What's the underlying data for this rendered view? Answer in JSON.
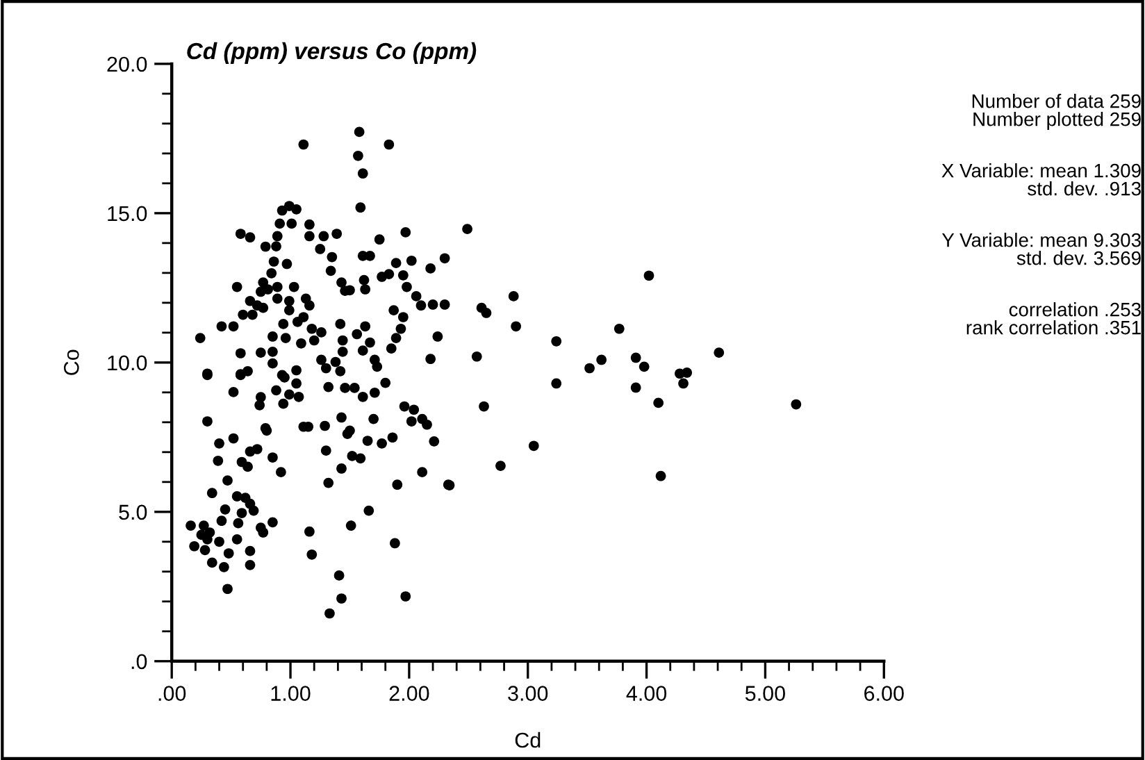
{
  "chart_data": {
    "type": "scatter",
    "title": "Cd (ppm) versus Co (ppm)",
    "xlabel": "Cd",
    "ylabel": "Co",
    "annotations": [
      "Number of data 259",
      "Number plotted 259",
      "X Variable: mean 1.309",
      "std. dev. .913",
      "Y Variable: mean 9.303",
      "std. dev. 3.569",
      "correlation .253",
      "rank correlation .351"
    ],
    "marker": "circle",
    "grid": false,
    "legend": false,
    "xlim": [
      0,
      6
    ],
    "ylim": [
      0,
      20
    ],
    "xticks": [
      {
        "value": 0,
        "label": ".00"
      },
      {
        "value": 0.2,
        "label": null
      },
      {
        "value": 0.4,
        "label": null
      },
      {
        "value": 0.6,
        "label": null
      },
      {
        "value": 0.8,
        "label": null
      },
      {
        "value": 1,
        "label": "1.00"
      },
      {
        "value": 1.2,
        "label": null
      },
      {
        "value": 1.4,
        "label": null
      },
      {
        "value": 1.6,
        "label": null
      },
      {
        "value": 1.8,
        "label": null
      },
      {
        "value": 2,
        "label": "2.00"
      },
      {
        "value": 2.2,
        "label": null
      },
      {
        "value": 2.4,
        "label": null
      },
      {
        "value": 2.6,
        "label": null
      },
      {
        "value": 2.8,
        "label": null
      },
      {
        "value": 3,
        "label": "3.00"
      },
      {
        "value": 3.2,
        "label": null
      },
      {
        "value": 3.4,
        "label": null
      },
      {
        "value": 3.6,
        "label": null
      },
      {
        "value": 3.8,
        "label": null
      },
      {
        "value": 4,
        "label": "4.00"
      },
      {
        "value": 4.2,
        "label": null
      },
      {
        "value": 4.4,
        "label": null
      },
      {
        "value": 4.6,
        "label": null
      },
      {
        "value": 4.8,
        "label": null
      },
      {
        "value": 5,
        "label": "5.00"
      },
      {
        "value": 5.2,
        "label": null
      },
      {
        "value": 5.4,
        "label": null
      },
      {
        "value": 5.6,
        "label": null
      },
      {
        "value": 5.8,
        "label": null
      },
      {
        "value": 6,
        "label": "6.00"
      }
    ],
    "yticks": [
      {
        "value": 0,
        "label": ".0"
      },
      {
        "value": 1,
        "label": null
      },
      {
        "value": 2,
        "label": null
      },
      {
        "value": 3,
        "label": null
      },
      {
        "value": 4,
        "label": null
      },
      {
        "value": 5,
        "label": "5.0"
      },
      {
        "value": 6,
        "label": null
      },
      {
        "value": 7,
        "label": null
      },
      {
        "value": 8,
        "label": null
      },
      {
        "value": 9,
        "label": null
      },
      {
        "value": 10,
        "label": "10.0"
      },
      {
        "value": 11,
        "label": null
      },
      {
        "value": 12,
        "label": null
      },
      {
        "value": 13,
        "label": null
      },
      {
        "value": 14,
        "label": null
      },
      {
        "value": 15,
        "label": "15.0"
      },
      {
        "value": 16,
        "label": null
      },
      {
        "value": 17,
        "label": null
      },
      {
        "value": 18,
        "label": null
      },
      {
        "value": 19,
        "label": null
      },
      {
        "value": 20,
        "label": "20.0"
      }
    ],
    "series": [
      {
        "color": "#000000",
        "x": [
          1.58,
          1.57,
          1.61,
          1.83,
          1.11,
          1.59,
          0.99,
          0.93,
          1.05,
          0.91,
          1.01,
          1.16,
          1.16,
          1.28,
          1.39,
          0.58,
          0.66,
          0.89,
          0.79,
          0.88,
          1.25,
          1.35,
          1.75,
          1.97,
          1.61,
          1.67,
          1.89,
          2.02,
          2.3,
          2.18,
          0.86,
          0.97,
          0.84,
          1.34,
          1.77,
          1.83,
          1.95,
          1.43,
          1.46,
          1.5,
          1.62,
          1.63,
          1.98,
          2.06,
          2.1,
          2.2,
          2.3,
          0.55,
          0.77,
          0.75,
          0.81,
          0.89,
          1.03,
          0.66,
          0.72,
          0.77,
          0.89,
          0.99,
          1.13,
          1.16,
          0.6,
          0.68,
          0.99,
          1.06,
          1.11,
          1.18,
          1.26,
          1.42,
          1.63,
          1.56,
          1.87,
          1.95,
          1.93,
          1.89,
          0.42,
          0.52,
          0.94,
          0.85,
          0.96,
          1.09,
          1.2,
          1.44,
          1.67,
          1.61,
          1.85,
          2.24,
          0.24,
          0.58,
          0.75,
          0.85,
          1.44,
          1.26,
          1.38,
          2.18,
          0.3,
          0.58,
          0.64,
          0.85,
          0.93,
          1.05,
          1.3,
          1.42,
          1.71,
          1.73,
          0.3,
          0.58,
          0.95,
          1.05,
          1.32,
          1.46,
          1.54,
          1.8,
          0.52,
          0.75,
          0.74,
          0.88,
          0.94,
          0.99,
          1.07,
          1.61,
          1.71,
          0.3,
          0.79,
          0.8,
          1.11,
          1.15,
          1.29,
          1.43,
          1.5,
          1.48,
          1.7,
          1.96,
          2.04,
          2.02,
          2.11,
          2.15,
          0.4,
          0.52,
          0.66,
          0.72,
          0.85,
          0.92,
          1.3,
          1.43,
          1.52,
          1.59,
          1.65,
          1.77,
          1.86,
          2.21,
          0.39,
          0.59,
          0.64,
          0.47,
          0.34,
          1.32,
          1.9,
          2.11,
          2.33,
          0.55,
          0.62,
          0.45,
          0.66,
          0.59,
          0.69,
          0.16,
          0.27,
          0.42,
          0.56,
          0.32,
          0.25,
          0.19,
          0.3,
          0.4,
          0.55,
          0.48,
          0.66,
          0.66,
          0.75,
          0.77,
          0.85,
          1.16,
          1.18,
          1.66,
          1.51,
          1.88,
          0.34,
          0.44,
          0.47,
          1.41,
          1.43,
          1.33,
          1.97,
          0.28,
          2.49,
          4.02,
          2.61,
          2.65,
          2.88,
          2.9,
          3.77,
          3.24,
          2.57,
          3.52,
          3.62,
          3.91,
          3.98,
          4.28,
          4.34,
          4.31,
          3.91,
          4.1,
          4.61,
          5.26,
          3.24,
          2.63,
          3.05,
          2.77,
          2.34,
          4.12
        ],
        "values": [
          17.72,
          16.92,
          16.33,
          17.3,
          17.3,
          15.19,
          15.24,
          15.09,
          15.13,
          14.65,
          14.65,
          14.62,
          14.23,
          14.23,
          14.31,
          14.31,
          14.19,
          14.23,
          13.88,
          13.89,
          13.8,
          13.53,
          14.12,
          14.36,
          13.57,
          13.57,
          13.33,
          13.41,
          13.49,
          13.15,
          13.38,
          13.3,
          12.99,
          13.07,
          12.87,
          12.96,
          12.92,
          12.68,
          12.4,
          12.42,
          12.76,
          12.45,
          12.53,
          12.22,
          11.91,
          11.94,
          11.94,
          12.53,
          12.68,
          12.37,
          12.45,
          12.53,
          12.53,
          12.06,
          11.91,
          11.83,
          12.14,
          12.06,
          12.14,
          11.91,
          11.6,
          11.6,
          11.75,
          11.36,
          11.52,
          11.13,
          11.01,
          11.29,
          11.21,
          10.95,
          11.75,
          11.52,
          11.13,
          10.82,
          11.21,
          11.21,
          11.29,
          10.87,
          10.82,
          10.64,
          10.74,
          10.74,
          10.67,
          10.4,
          10.47,
          10.87,
          10.82,
          10.31,
          10.33,
          10.36,
          10.36,
          10.09,
          10.02,
          10.12,
          9.63,
          9.61,
          9.71,
          9.97,
          9.58,
          9.74,
          9.81,
          9.71,
          10.09,
          9.86,
          9.58,
          9.58,
          9.5,
          9.3,
          9.18,
          9.15,
          9.15,
          9.32,
          9.01,
          8.84,
          8.57,
          9.07,
          8.62,
          8.93,
          8.85,
          8.85,
          8.99,
          8.03,
          7.8,
          7.72,
          7.85,
          7.85,
          7.88,
          8.16,
          7.72,
          7.61,
          8.11,
          8.53,
          8.42,
          8.03,
          8.11,
          7.92,
          7.29,
          7.46,
          7.02,
          7.1,
          6.82,
          6.33,
          7.05,
          6.45,
          6.87,
          6.79,
          7.38,
          7.29,
          7.49,
          7.36,
          6.71,
          6.67,
          6.51,
          6.05,
          5.63,
          5.97,
          5.91,
          6.33,
          5.91,
          5.52,
          5.47,
          5.08,
          5.27,
          4.96,
          5.04,
          4.54,
          4.54,
          4.7,
          4.62,
          4.31,
          4.23,
          3.85,
          4.08,
          4.0,
          4.08,
          3.61,
          3.69,
          3.22,
          4.47,
          4.31,
          4.65,
          4.34,
          3.57,
          5.04,
          4.54,
          3.95,
          3.3,
          3.15,
          2.42,
          2.87,
          2.1,
          1.6,
          2.17,
          3.72,
          14.47,
          12.91,
          11.83,
          11.66,
          12.22,
          11.21,
          11.13,
          10.71,
          10.2,
          9.81,
          10.09,
          10.16,
          9.86,
          9.63,
          9.66,
          9.3,
          9.16,
          8.65,
          10.33,
          8.6,
          9.3,
          8.53,
          7.21,
          6.54,
          5.89,
          6.2
        ]
      }
    ]
  }
}
